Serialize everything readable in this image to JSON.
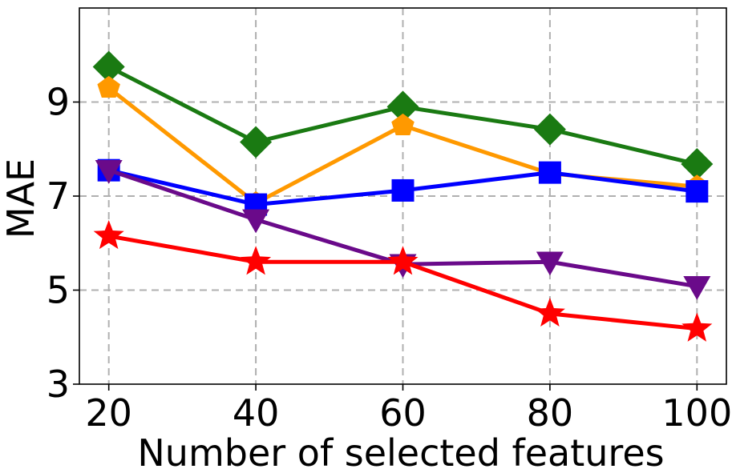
{
  "chart_data": {
    "type": "line",
    "title": "",
    "xlabel": "Number of selected features",
    "ylabel": "MAE",
    "x": [
      20,
      40,
      60,
      80,
      100
    ],
    "x_ticks": [
      "20",
      "40",
      "60",
      "80",
      "100"
    ],
    "y_ticks": [
      3,
      5,
      7,
      9
    ],
    "y_tick_labels": [
      "3",
      "5",
      "7",
      "9"
    ],
    "xlim": [
      16,
      104
    ],
    "ylim": [
      3,
      11.0
    ],
    "grid": true,
    "series": [
      {
        "color": "#1a7a12",
        "marker": "diamond",
        "values": [
          9.75,
          8.15,
          8.9,
          8.42,
          7.68
        ]
      },
      {
        "color": "#ff9900",
        "marker": "pentagon",
        "values": [
          9.3,
          6.85,
          8.5,
          7.48,
          7.2
        ]
      },
      {
        "color": "#0000ff",
        "marker": "square",
        "values": [
          7.55,
          6.82,
          7.12,
          7.5,
          7.1
        ]
      },
      {
        "color": "#6a0a8a",
        "marker": "triangle-down",
        "values": [
          7.55,
          6.5,
          5.55,
          5.6,
          5.08
        ]
      },
      {
        "color": "#ff0000",
        "marker": "star",
        "values": [
          6.15,
          5.6,
          5.6,
          4.5,
          4.18
        ]
      }
    ]
  }
}
